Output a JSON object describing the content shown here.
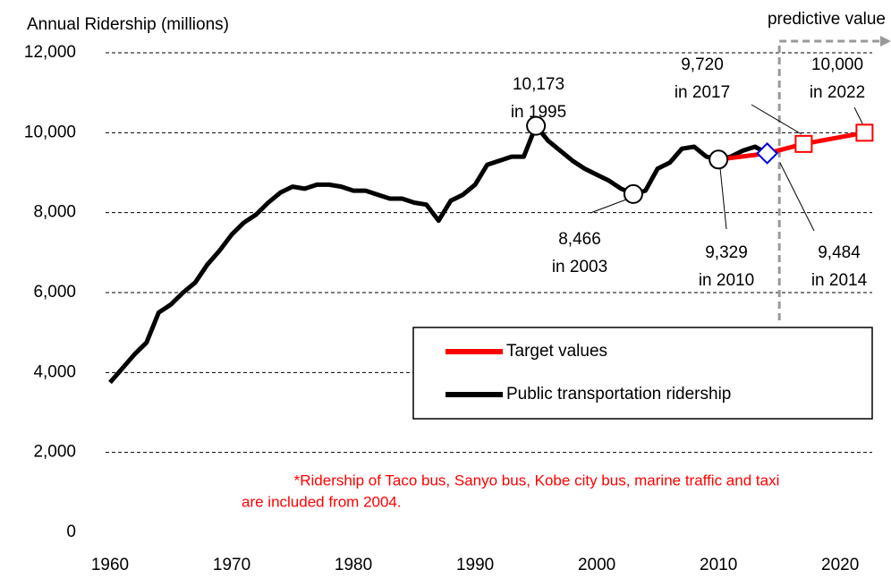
{
  "chart_data": {
    "type": "line",
    "ylabel": "Annual Ridership (millions)",
    "annotation": "predictive value",
    "predictive_x": 2015,
    "footnote": [
      "*Ridership of Taco bus, Sanyo bus, Kobe city bus, marine traffic and taxi",
      "are included from 2004."
    ],
    "xlim": [
      1960,
      2023
    ],
    "xticks": [
      1960,
      1970,
      1980,
      1990,
      2000,
      2010,
      2020
    ],
    "ylim": [
      0,
      12000
    ],
    "yticks": [
      0,
      {
        "value": 2000,
        "label": "2,000"
      },
      {
        "value": 4000,
        "label": "4,000"
      },
      {
        "value": 6000,
        "label": "6,000"
      },
      {
        "value": 8000,
        "label": "8,000"
      },
      {
        "value": 10000,
        "label": "10,000"
      },
      {
        "value": 12000,
        "label": "12,000"
      }
    ],
    "grid": true,
    "series": [
      {
        "name": "Target values",
        "color": "#ff0000",
        "x": [
          2010,
          2014,
          2017,
          2022
        ],
        "values": [
          9329,
          9484,
          9720,
          10000
        ]
      },
      {
        "name": "Public transportation ridership",
        "color": "#000000",
        "x": [
          1960,
          1961,
          1962,
          1963,
          1964,
          1965,
          1966,
          1967,
          1968,
          1969,
          1970,
          1971,
          1972,
          1973,
          1974,
          1975,
          1976,
          1977,
          1978,
          1979,
          1980,
          1981,
          1982,
          1983,
          1984,
          1985,
          1986,
          1987,
          1988,
          1989,
          1990,
          1991,
          1992,
          1993,
          1994,
          1995,
          1996,
          1997,
          1998,
          1999,
          2000,
          2001,
          2002,
          2003,
          2004,
          2005,
          2006,
          2007,
          2008,
          2009,
          2010,
          2011,
          2012,
          2013,
          2014
        ],
        "values": [
          3750,
          4100,
          4450,
          4750,
          5500,
          5700,
          6000,
          6250,
          6700,
          7050,
          7450,
          7750,
          7950,
          8250,
          8500,
          8650,
          8600,
          8700,
          8700,
          8650,
          8550,
          8550,
          8450,
          8350,
          8350,
          8250,
          8200,
          7800,
          8300,
          8450,
          8700,
          9200,
          9300,
          9400,
          9400,
          10173,
          9800,
          9550,
          9300,
          9100,
          8950,
          8800,
          8600,
          8466,
          8550,
          9100,
          9250,
          9600,
          9650,
          9400,
          9329,
          9400,
          9550,
          9650,
          9484
        ]
      }
    ],
    "callouts": [
      {
        "x": 1995,
        "value": 10173,
        "value_label": "10,173",
        "note": "in 1995",
        "marker": "circle"
      },
      {
        "x": 2003,
        "value": 8466,
        "value_label": "8,466",
        "note": "in 2003",
        "marker": "circle"
      },
      {
        "x": 2010,
        "value": 9329,
        "value_label": "9,329",
        "note": "in 2010",
        "marker": "circle"
      },
      {
        "x": 2014,
        "value": 9484,
        "value_label": "9,484",
        "note": "in 2014",
        "marker": "diamond"
      },
      {
        "x": 2017,
        "value": 9720,
        "value_label": "9,720",
        "note": "in 2017",
        "marker": "square"
      },
      {
        "x": 2022,
        "value": 10000,
        "value_label": "10,000",
        "note": "in 2022",
        "marker": "square"
      }
    ]
  }
}
